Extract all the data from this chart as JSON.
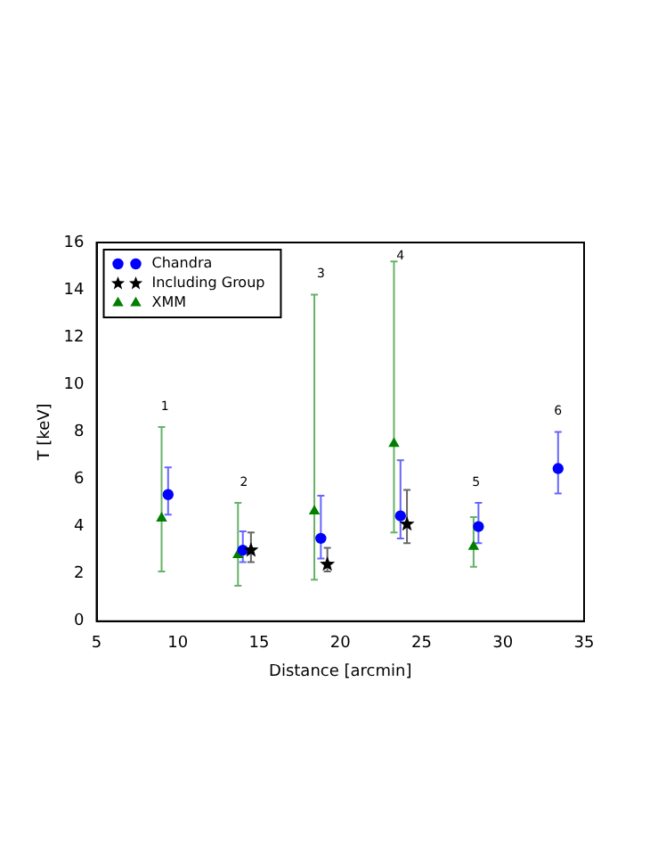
{
  "chart_data": {
    "type": "scatter",
    "xlabel": "Distance [arcmin]",
    "ylabel": "T [keV]",
    "xlim": [
      5,
      35
    ],
    "xticks": [
      5,
      10,
      15,
      20,
      25,
      30,
      35
    ],
    "ylim": [
      0,
      16
    ],
    "yticks": [
      0,
      2,
      4,
      6,
      8,
      10,
      12,
      14,
      16
    ],
    "grid": false,
    "legend": "top left",
    "series": [
      {
        "name": "Chandra",
        "color": "#0000ff",
        "marker": "circle",
        "x": [
          9.4,
          14.0,
          18.8,
          23.7,
          28.5,
          33.4
        ],
        "values": [
          5.35,
          3.0,
          3.5,
          4.45,
          4.0,
          6.45
        ],
        "errors": [
          [
            4.5,
            6.5
          ],
          [
            2.5,
            3.8
          ],
          [
            2.65,
            5.3
          ],
          [
            3.5,
            6.8
          ],
          [
            3.3,
            5.0
          ],
          [
            5.4,
            8.0
          ]
        ]
      },
      {
        "name": "Including Group",
        "color": "#000000",
        "marker": "star",
        "x": [
          14.5,
          19.2,
          24.1
        ],
        "values": [
          3.0,
          2.4,
          4.1
        ],
        "errors": [
          [
            2.5,
            3.75
          ],
          [
            2.1,
            3.1
          ],
          [
            3.3,
            5.55
          ]
        ]
      },
      {
        "name": "XMM",
        "color": "#007f00",
        "marker": "triangle",
        "x": [
          9.0,
          13.7,
          18.4,
          23.3,
          28.2
        ],
        "values": [
          4.35,
          2.8,
          4.65,
          7.5,
          3.15
        ],
        "errors": [
          [
            2.1,
            8.2
          ],
          [
            1.5,
            5.0
          ],
          [
            1.75,
            13.8
          ],
          [
            3.75,
            15.2
          ],
          [
            2.3,
            4.4
          ]
        ]
      }
    ],
    "annotations": [
      "1",
      "2",
      "3",
      "4",
      "5",
      "6"
    ]
  }
}
